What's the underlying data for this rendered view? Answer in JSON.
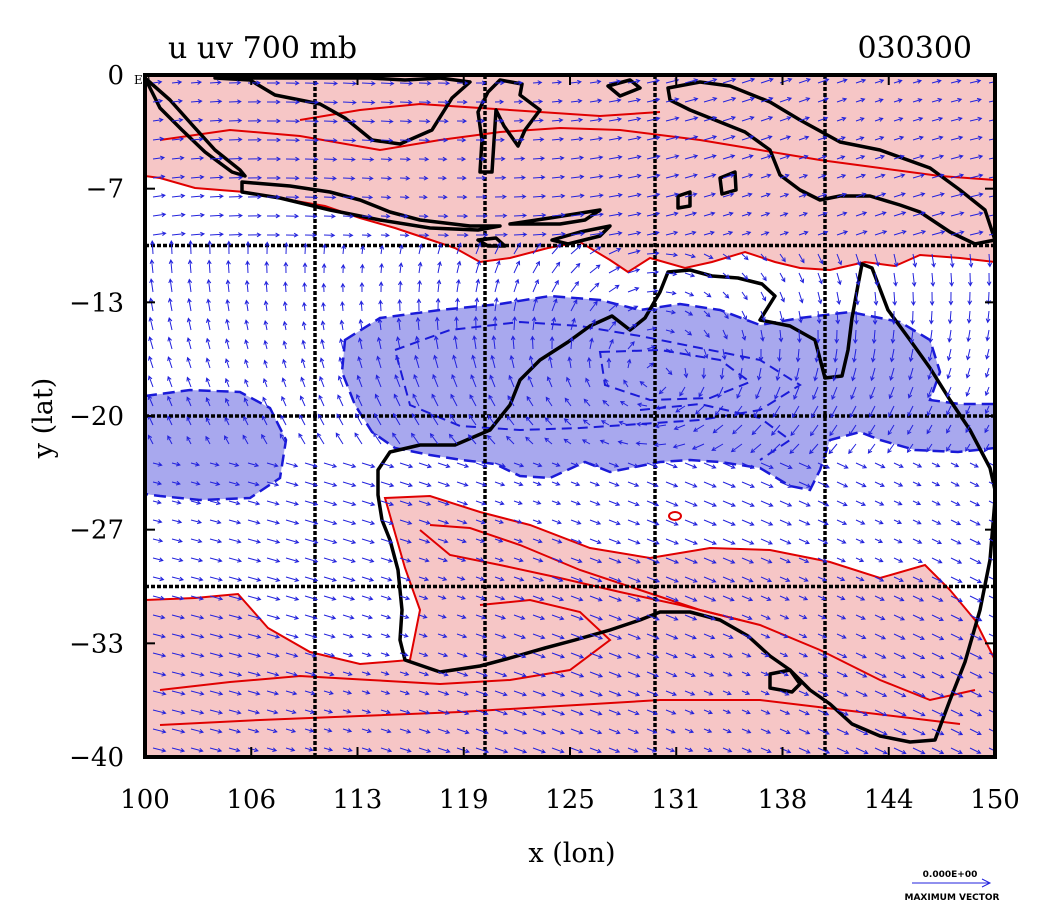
{
  "plot": {
    "title": "u uv 700 mb",
    "time_label": "030300",
    "origin_tag": "E0",
    "xlabel": "x (lon)",
    "ylabel": "y (lat)",
    "x_ticks": [
      "100",
      "106",
      "113",
      "119",
      "125",
      "131",
      "138",
      "144",
      "150"
    ],
    "y_ticks": [
      "0",
      "−7",
      "−13",
      "−20",
      "−27",
      "−33",
      "−40"
    ],
    "x_range": [
      100,
      150
    ],
    "y_range": [
      -40,
      0
    ],
    "grid_lon": [
      110,
      120,
      130,
      140
    ],
    "grid_lat": [
      -10,
      -20,
      -30
    ],
    "reference_vector_value": "0.000E+00",
    "reference_vector_caption": "MAXIMUM VECTOR"
  },
  "colors": {
    "positive_fill": "#f6c6c6",
    "positive_contour": "#e00000",
    "negative_fill": "#a8a8ee",
    "negative_contour": "#1a1ad8",
    "vector": "#2222dd",
    "coastline": "#000000"
  },
  "chart_data": {
    "type": "heatmap",
    "variable": "u, uv",
    "level": "700 mb",
    "x_range": [
      100,
      150
    ],
    "y_range": [
      -40,
      0
    ],
    "positive_regions": [
      {
        "lon": [
          100,
          150
        ],
        "lat": [
          -10,
          0
        ]
      },
      {
        "lon": [
          114,
          150
        ],
        "lat": [
          -40,
          -26
        ]
      },
      {
        "lon": [
          100,
          114
        ],
        "lat": [
          -40,
          -30
        ]
      }
    ],
    "negative_regions": [
      {
        "lon": [
          111,
          150
        ],
        "lat": [
          -24,
          -13
        ]
      },
      {
        "lon": [
          100,
          108
        ],
        "lat": [
          -24,
          -18
        ]
      }
    ]
  }
}
